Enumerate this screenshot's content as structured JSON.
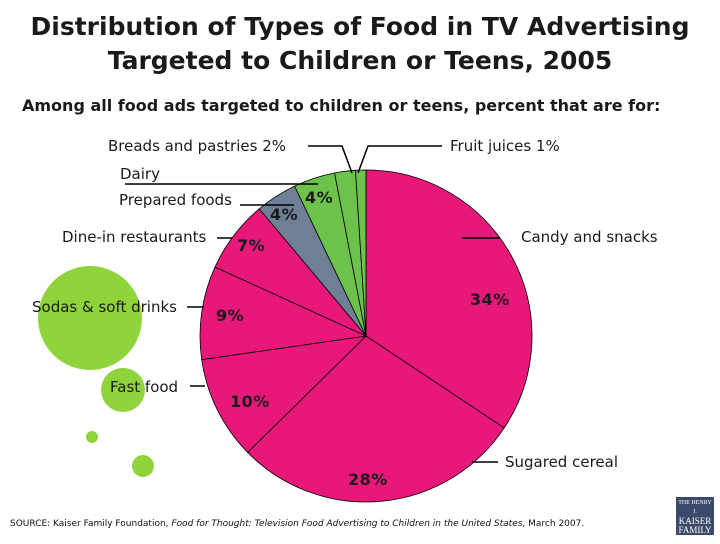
{
  "header": {
    "title_line1": "Distribution of Types of Food in TV Advertising",
    "title_line2": "Targeted to Children or Teens, 2005",
    "subtitle": "Among all food ads targeted to children or teens, percent that are for:"
  },
  "chart_data": {
    "type": "pie",
    "unit": "%",
    "slices": [
      {
        "name": "Candy and snacks",
        "value": 34,
        "label": "34%",
        "color": "#e8177a"
      },
      {
        "name": "Sugared cereal",
        "value": 28,
        "label": "28%",
        "color": "#e8177a"
      },
      {
        "name": "Fast food",
        "value": 10,
        "label": "10%",
        "color": "#e8177a"
      },
      {
        "name": "Sodas & soft drinks",
        "value": 9,
        "label": "9%",
        "color": "#e8177a"
      },
      {
        "name": "Dine-in restaurants",
        "value": 7,
        "label": "7%",
        "color": "#e8177a"
      },
      {
        "name": "Prepared foods",
        "value": 4,
        "label": "4%",
        "color": "#6f7f96"
      },
      {
        "name": "Dairy",
        "value": 4,
        "label": "4%",
        "color": "#6cc24a"
      },
      {
        "name": "Breads and pastries",
        "value": 2,
        "label": "2%",
        "color": "#6cc24a"
      },
      {
        "name": "Fruit juices",
        "value": 1,
        "label": "1%",
        "color": "#6cc24a"
      }
    ],
    "category_labels": {
      "breads": "Breads and pastries  2%",
      "fruit": "Fruit juices  1%",
      "dairy": "Dairy",
      "prepared": "Prepared foods",
      "dinein": "Dine-in restaurants",
      "candy": "Candy and snacks",
      "sodas": "Sodas & soft drinks",
      "fastfood": "Fast food",
      "cereal": "Sugared cereal"
    },
    "legend": "none (callout labels)"
  },
  "footer": {
    "source_prefix": "SOURCE: Kaiser Family Foundation, ",
    "source_title": "Food for Thought: Television Food Advertising to Children in the United States",
    "source_suffix": ", March 2007.",
    "logo_line1": "THE HENRY J.",
    "logo_line2": "KAISER",
    "logo_line3": "FAMILY",
    "logo_line4": "FOUNDATION"
  },
  "colors": {
    "magenta": "#e8177a",
    "slate": "#6f7f96",
    "green": "#6cc24a",
    "deco_circle": "#8fd43a"
  }
}
